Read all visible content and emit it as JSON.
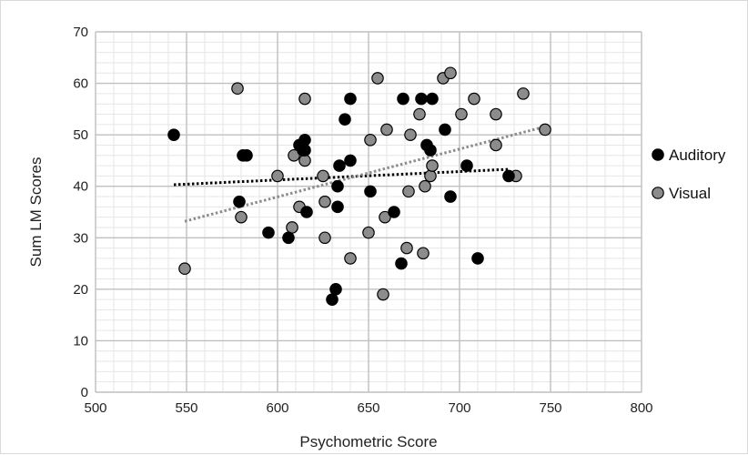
{
  "chart_data": {
    "type": "scatter",
    "title": "",
    "xlabel": "Psychometric Score",
    "ylabel": "Sum LM Scores",
    "xlim": [
      500,
      800
    ],
    "ylim": [
      0,
      70
    ],
    "x_ticks": [
      500,
      550,
      600,
      650,
      700,
      750,
      800
    ],
    "y_ticks": [
      0,
      10,
      20,
      30,
      40,
      50,
      60,
      70
    ],
    "x_tick_labels": [
      "500",
      "550",
      "600",
      "650",
      "700",
      "750",
      "800"
    ],
    "y_tick_labels": [
      "0",
      "10",
      "20",
      "30",
      "40",
      "50",
      "60",
      "70"
    ],
    "grid": true,
    "legend_position": "right",
    "series": [
      {
        "name": "Auditory",
        "color": "#000000",
        "points": [
          [
            543,
            50
          ],
          [
            579,
            37
          ],
          [
            581,
            46
          ],
          [
            583,
            46
          ],
          [
            595,
            31
          ],
          [
            606,
            30
          ],
          [
            612,
            48
          ],
          [
            614,
            47
          ],
          [
            615,
            49
          ],
          [
            615,
            47
          ],
          [
            616,
            35
          ],
          [
            630,
            18
          ],
          [
            632,
            20
          ],
          [
            633,
            36
          ],
          [
            633,
            40
          ],
          [
            634,
            44
          ],
          [
            637,
            53
          ],
          [
            640,
            57
          ],
          [
            640,
            45
          ],
          [
            651,
            39
          ],
          [
            664,
            35
          ],
          [
            668,
            25
          ],
          [
            669,
            57
          ],
          [
            679,
            57
          ],
          [
            685,
            57
          ],
          [
            682,
            48
          ],
          [
            684,
            47
          ],
          [
            692,
            51
          ],
          [
            695,
            38
          ],
          [
            704,
            44
          ],
          [
            710,
            26
          ],
          [
            727,
            42
          ]
        ],
        "trendline": {
          "type": "linear",
          "x_range": [
            543,
            727
          ],
          "y_range": [
            40.3,
            43.3
          ],
          "color": "#000000"
        }
      },
      {
        "name": "Visual",
        "color": "#8c8c8c",
        "points": [
          [
            549,
            24
          ],
          [
            578,
            59
          ],
          [
            580,
            34
          ],
          [
            600,
            42
          ],
          [
            608,
            32
          ],
          [
            609,
            46
          ],
          [
            612,
            36
          ],
          [
            615,
            57
          ],
          [
            615,
            45
          ],
          [
            625,
            42
          ],
          [
            626,
            37
          ],
          [
            626,
            30
          ],
          [
            640,
            26
          ],
          [
            650,
            31
          ],
          [
            651,
            49
          ],
          [
            655,
            61
          ],
          [
            658,
            19
          ],
          [
            659,
            34
          ],
          [
            660,
            51
          ],
          [
            671,
            28
          ],
          [
            672,
            39
          ],
          [
            673,
            50
          ],
          [
            678,
            54
          ],
          [
            680,
            27
          ],
          [
            681,
            40
          ],
          [
            684,
            42
          ],
          [
            685,
            44
          ],
          [
            691,
            61
          ],
          [
            695,
            62
          ],
          [
            701,
            54
          ],
          [
            708,
            57
          ],
          [
            720,
            54
          ],
          [
            720,
            48
          ],
          [
            731,
            42
          ],
          [
            735,
            58
          ],
          [
            747,
            51
          ]
        ],
        "trendline": {
          "type": "linear",
          "x_range": [
            549,
            747
          ],
          "y_range": [
            33.2,
            51.6
          ],
          "color": "#8c8c8c"
        }
      }
    ]
  }
}
